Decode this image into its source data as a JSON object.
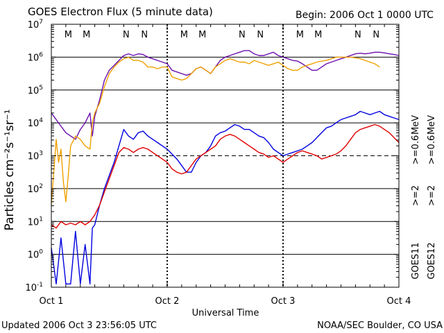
{
  "chart_data": {
    "type": "line",
    "title": "GOES Electron Flux (5 minute data)",
    "begin": "Begin: 2006 Oct 1 0000 UTC",
    "xlabel": "Universal Time",
    "ylabel": "Particles cm⁻²s⁻¹sr⁻¹",
    "x_unit": "hours since 2006 Oct 1 0000 UTC",
    "xlim": [
      0,
      72
    ],
    "ylim_log10": [
      -1,
      7
    ],
    "x_ticks": [
      {
        "x": 0,
        "label": "Oct 1"
      },
      {
        "x": 24,
        "label": "Oct 2"
      },
      {
        "x": 48,
        "label": "Oct 3"
      },
      {
        "x": 72,
        "label": "Oct 4"
      }
    ],
    "y_ticks": [
      {
        "exp": -1,
        "base": "10",
        "sup": "-1"
      },
      {
        "exp": 0,
        "base": "10",
        "sup": "0"
      },
      {
        "exp": 1,
        "base": "10",
        "sup": "1"
      },
      {
        "exp": 2,
        "base": "10",
        "sup": "2"
      },
      {
        "exp": 3,
        "base": "10",
        "sup": "3"
      },
      {
        "exp": 4,
        "base": "10",
        "sup": "4"
      },
      {
        "exp": 5,
        "base": "10",
        "sup": "5"
      },
      {
        "exp": 6,
        "base": "10",
        "sup": "6"
      },
      {
        "exp": 7,
        "base": "10",
        "sup": "7"
      }
    ],
    "threshold_dashed_exp": 3,
    "noon_markers": [
      {
        "x": 3.5,
        "label": "M",
        "color": "#e00000"
      },
      {
        "x": 7.3,
        "label": "M",
        "color": "#0000e0"
      },
      {
        "x": 15.5,
        "label": "N",
        "color": "#e00000"
      },
      {
        "x": 19.3,
        "label": "N",
        "color": "#0000e0"
      },
      {
        "x": 27.5,
        "label": "M",
        "color": "#e00000"
      },
      {
        "x": 31.3,
        "label": "M",
        "color": "#0000e0"
      },
      {
        "x": 39.5,
        "label": "N",
        "color": "#e00000"
      },
      {
        "x": 43.3,
        "label": "N",
        "color": "#0000e0"
      },
      {
        "x": 51.5,
        "label": "M",
        "color": "#e00000"
      },
      {
        "x": 55.3,
        "label": "M",
        "color": "#0000e0"
      },
      {
        "x": 63.5,
        "label": "N",
        "color": "#e00000"
      },
      {
        "x": 67.3,
        "label": "N",
        "color": "#0000e0"
      }
    ],
    "legend": [
      {
        "text": "GOES11",
        "color": "#000000",
        "lines": [
          {
            "text": ">=2",
            "color": "#0000e0"
          },
          {
            "text": ">=0.6",
            "color": "#6a0dad"
          },
          {
            "text": "MeV",
            "color": "#000000"
          }
        ]
      },
      {
        "text": "GOES12",
        "color": "#000000",
        "lines": [
          {
            "text": ">=2",
            "color": "#e00000"
          },
          {
            "text": ">=0.6",
            "color": "#f0a000"
          },
          {
            "text": "MeV",
            "color": "#000000"
          }
        ]
      }
    ],
    "series": [
      {
        "name": "GOES11 >=0.6 MeV",
        "color": "#6a0dad",
        "x": [
          0,
          1,
          2,
          3,
          4,
          5,
          6,
          7,
          8,
          8.5,
          9,
          10,
          11,
          12,
          13,
          14,
          15,
          16,
          17,
          18,
          19,
          20,
          21,
          22,
          23,
          24,
          25,
          26,
          27,
          28,
          29,
          30,
          31,
          32,
          33,
          34,
          35,
          36,
          37,
          38,
          39,
          40,
          41,
          42,
          43,
          44,
          45,
          46,
          47,
          48,
          49,
          50,
          51,
          52,
          53,
          54,
          55,
          56,
          57,
          58,
          59,
          60,
          61,
          62,
          63,
          64,
          65,
          66,
          67,
          68,
          69,
          70,
          71,
          72
        ],
        "log10": [
          4.3,
          4.1,
          3.9,
          3.7,
          3.6,
          3.5,
          3.8,
          4.0,
          4.3,
          3.6,
          4.2,
          4.7,
          5.3,
          5.6,
          5.75,
          5.9,
          6.05,
          6.1,
          6.05,
          6.1,
          6.08,
          6.0,
          5.95,
          5.9,
          5.85,
          5.8,
          5.6,
          5.55,
          5.5,
          5.45,
          5.5,
          5.65,
          5.7,
          5.6,
          5.5,
          5.7,
          5.9,
          6.0,
          6.05,
          6.1,
          6.15,
          6.2,
          6.2,
          6.1,
          6.05,
          6.05,
          6.1,
          6.15,
          6.05,
          6.0,
          5.95,
          5.9,
          5.88,
          5.8,
          5.7,
          5.6,
          5.6,
          5.7,
          5.8,
          5.85,
          5.9,
          5.95,
          6.0,
          6.05,
          6.1,
          6.12,
          6.1,
          6.12,
          6.15,
          6.15,
          6.13,
          6.1,
          6.08,
          6.05
        ]
      },
      {
        "name": "GOES12 >=0.6 MeV",
        "color": "#f0a000",
        "x": [
          0,
          0.5,
          1,
          1.5,
          2,
          2.5,
          3,
          3.5,
          4,
          5,
          6,
          7,
          8,
          8.5,
          9,
          10,
          11,
          12,
          13,
          14,
          15,
          16,
          17,
          18,
          19,
          20,
          21,
          22,
          23,
          24,
          25,
          26,
          27,
          28,
          29,
          30,
          31,
          32,
          33,
          34,
          35,
          36,
          37,
          38,
          39,
          40,
          41,
          42,
          43,
          44,
          45,
          46,
          47,
          48,
          49,
          50,
          51,
          52,
          53,
          54,
          55,
          56,
          57,
          58,
          59,
          60,
          61,
          62,
          63,
          64,
          65,
          66,
          67,
          68,
          69,
          70,
          71,
          72
        ],
        "log10": [
          1.5,
          2.5,
          3.5,
          2.8,
          3.2,
          2.2,
          1.6,
          2.4,
          3.3,
          3.6,
          3.5,
          3.3,
          3.2,
          4.0,
          4.3,
          4.6,
          5.1,
          5.5,
          5.7,
          5.85,
          5.95,
          6.0,
          5.9,
          5.9,
          5.85,
          5.7,
          5.7,
          5.65,
          5.7,
          5.7,
          5.4,
          5.35,
          5.3,
          5.35,
          5.5,
          5.65,
          5.7,
          5.6,
          5.5,
          5.7,
          5.8,
          5.9,
          5.95,
          5.9,
          5.85,
          5.85,
          5.8,
          5.9,
          5.85,
          5.8,
          5.75,
          5.8,
          5.85,
          5.75,
          5.65,
          5.6,
          5.6,
          5.7,
          5.75,
          5.8,
          5.85,
          5.88,
          5.9,
          5.95,
          6.0,
          6.0,
          6.0,
          6.0,
          5.98,
          5.95,
          5.9,
          5.85,
          5.8,
          5.7
        ]
      },
      {
        "name": "GOES11 >=2 MeV",
        "color": "#0000e0",
        "x": [
          0,
          1,
          2,
          3,
          4,
          5,
          6,
          7,
          8,
          8.5,
          9,
          10,
          11,
          12,
          13,
          14,
          15,
          16,
          17,
          18,
          19,
          20,
          21,
          22,
          23,
          24,
          25,
          26,
          27,
          28,
          29,
          30,
          31,
          32,
          33,
          34,
          35,
          36,
          37,
          38,
          39,
          40,
          41,
          42,
          43,
          44,
          45,
          46,
          47,
          48,
          49,
          50,
          51,
          52,
          53,
          54,
          55,
          56,
          57,
          58,
          59,
          60,
          61,
          62,
          63,
          64,
          65,
          66,
          67,
          68,
          69,
          70,
          71,
          72
        ],
        "log10": [
          0.2,
          -0.9,
          0.5,
          -0.9,
          -0.9,
          0.7,
          -0.9,
          0.3,
          -0.9,
          0.8,
          0.9,
          1.5,
          2.0,
          2.4,
          2.8,
          3.3,
          3.8,
          3.6,
          3.5,
          3.7,
          3.75,
          3.6,
          3.5,
          3.4,
          3.3,
          3.2,
          3.05,
          2.9,
          2.7,
          2.5,
          2.5,
          2.8,
          3.0,
          3.1,
          3.3,
          3.6,
          3.7,
          3.75,
          3.85,
          3.95,
          3.9,
          3.8,
          3.8,
          3.7,
          3.6,
          3.55,
          3.4,
          3.2,
          3.1,
          3.0,
          3.05,
          3.1,
          3.15,
          3.2,
          3.3,
          3.4,
          3.55,
          3.7,
          3.85,
          3.9,
          4.0,
          4.1,
          4.15,
          4.2,
          4.25,
          4.35,
          4.3,
          4.25,
          4.3,
          4.35,
          4.25,
          4.2,
          4.15,
          4.1
        ]
      },
      {
        "name": "GOES12 >=2 MeV",
        "color": "#e00000",
        "x": [
          0,
          1,
          2,
          3,
          4,
          5,
          6,
          7,
          8,
          8.5,
          9,
          10,
          11,
          12,
          13,
          14,
          15,
          16,
          17,
          18,
          19,
          20,
          21,
          22,
          23,
          24,
          25,
          26,
          27,
          28,
          29,
          30,
          31,
          32,
          33,
          34,
          35,
          36,
          37,
          38,
          39,
          40,
          41,
          42,
          43,
          44,
          45,
          46,
          47,
          48,
          49,
          50,
          51,
          52,
          53,
          54,
          55,
          56,
          57,
          58,
          59,
          60,
          61,
          62,
          63,
          64,
          65,
          66,
          67,
          68,
          69,
          70,
          71,
          72
        ],
        "log10": [
          0.9,
          0.8,
          1.0,
          0.9,
          0.95,
          0.9,
          1.0,
          0.9,
          1.0,
          1.1,
          1.2,
          1.5,
          1.9,
          2.3,
          2.7,
          3.1,
          3.25,
          3.2,
          3.1,
          3.2,
          3.25,
          3.2,
          3.1,
          3.0,
          2.9,
          2.8,
          2.6,
          2.5,
          2.45,
          2.5,
          2.7,
          2.9,
          3.0,
          3.1,
          3.2,
          3.3,
          3.5,
          3.6,
          3.65,
          3.6,
          3.5,
          3.4,
          3.3,
          3.2,
          3.1,
          3.05,
          2.95,
          3.0,
          2.9,
          2.8,
          2.9,
          3.0,
          3.1,
          3.15,
          3.1,
          3.05,
          3.0,
          2.9,
          2.95,
          3.0,
          3.05,
          3.15,
          3.3,
          3.5,
          3.7,
          3.8,
          3.85,
          3.9,
          3.95,
          3.9,
          3.8,
          3.7,
          3.55,
          3.4
        ]
      }
    ]
  },
  "footer": {
    "updated": "Updated 2006 Oct  3 23:56:05 UTC",
    "source": "NOAA/SEC Boulder, CO USA"
  }
}
